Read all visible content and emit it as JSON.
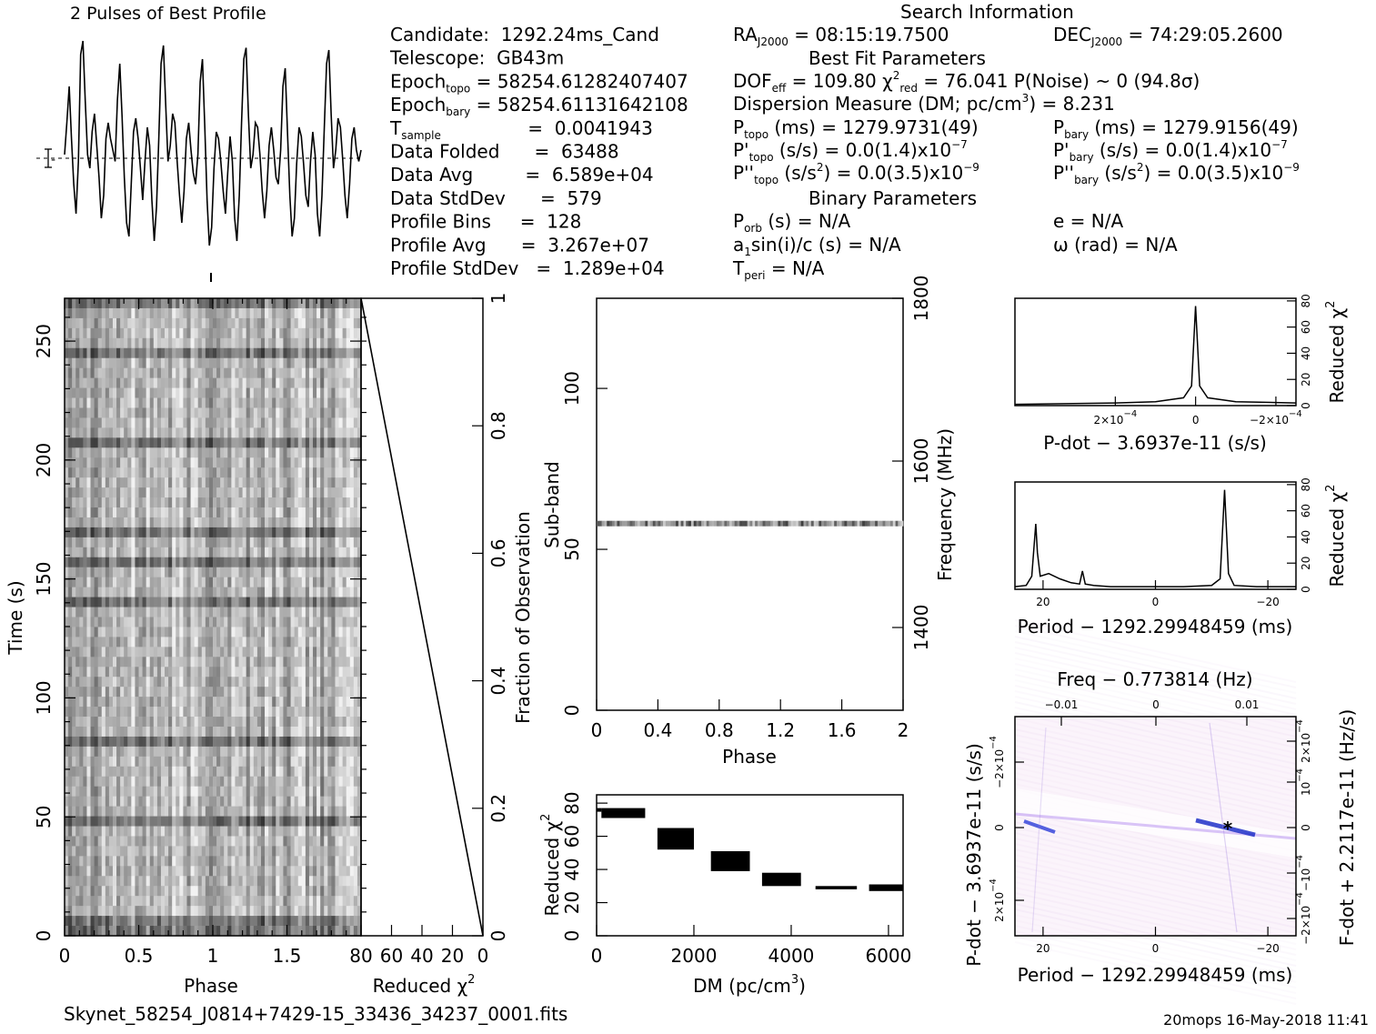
{
  "profile": {
    "title": "2 Pulses of Best Profile",
    "errbar_label": "-",
    "waveform_values": [
      0.48,
      0.62,
      0.78,
      0.55,
      0.35,
      0.22,
      0.45,
      0.92,
      0.98,
      0.72,
      0.48,
      0.42,
      0.58,
      0.66,
      0.52,
      0.38,
      0.2,
      0.3,
      0.55,
      0.62,
      0.55,
      0.5,
      0.45,
      0.72,
      0.88,
      0.65,
      0.38,
      0.18,
      0.12,
      0.35,
      0.58,
      0.64,
      0.55,
      0.42,
      0.28,
      0.45,
      0.6,
      0.52,
      0.28,
      0.1,
      0.25,
      0.55,
      0.88,
      0.96,
      0.7,
      0.45,
      0.52,
      0.66,
      0.62,
      0.45,
      0.3,
      0.18,
      0.32,
      0.55,
      0.62,
      0.5,
      0.4,
      0.35,
      0.48,
      0.8,
      0.9,
      0.6,
      0.28,
      0.08,
      0.16,
      0.42,
      0.58,
      0.55,
      0.45,
      0.32,
      0.22,
      0.4,
      0.56,
      0.45,
      0.2,
      0.1,
      0.3,
      0.62,
      0.9,
      0.95,
      0.65,
      0.42,
      0.48,
      0.62,
      0.6,
      0.48,
      0.32,
      0.2,
      0.32,
      0.52,
      0.6,
      0.5,
      0.38,
      0.35,
      0.5,
      0.78,
      0.86,
      0.58,
      0.3,
      0.12,
      0.2,
      0.44,
      0.6,
      0.56,
      0.44,
      0.3,
      0.25,
      0.45,
      0.58,
      0.48,
      0.22,
      0.12,
      0.3,
      0.6,
      0.88,
      0.94,
      0.66,
      0.42,
      0.5,
      0.64,
      0.6,
      0.46,
      0.3,
      0.2,
      0.35,
      0.55,
      0.6,
      0.5,
      0.45,
      0.5
    ]
  },
  "info": {
    "col1": [
      {
        "label": "Candidate:  1292.24ms_Cand",
        "sub": "",
        "tail": ""
      },
      {
        "label": "Telescope:  GB43m",
        "sub": "",
        "tail": ""
      },
      {
        "label": "Epoch",
        "sub": "topo",
        "tail": " = 58254.61282407407"
      },
      {
        "label": "Epoch",
        "sub": "bary",
        "tail": " = 58254.61131642108"
      },
      {
        "label": "T",
        "sub": "sample",
        "tail": "               =  0.0041943"
      },
      {
        "label": "Data Folded      =  63488",
        "sub": "",
        "tail": ""
      },
      {
        "label": "Data Avg         =  6.589e+04",
        "sub": "",
        "tail": ""
      },
      {
        "label": "Data StdDev      =  579",
        "sub": "",
        "tail": ""
      },
      {
        "label": "Profile Bins     =  128",
        "sub": "",
        "tail": ""
      },
      {
        "label": "Profile Avg      =  3.267e+07",
        "sub": "",
        "tail": ""
      },
      {
        "label": "Profile StdDev   =  1.289e+04",
        "sub": "",
        "tail": ""
      }
    ],
    "search_title": "Search Information",
    "ra_label": "RA",
    "ra_sub": "J2000",
    "ra_value": " = 08:15:19.7500",
    "dec_label": "DEC",
    "dec_sub": "J2000",
    "dec_value": " = 74:29:05.2600",
    "best_fit_title": "Best Fit Parameters",
    "dof_line": "DOF",
    "dof_sub": "eff",
    "dof_value": " = 109.80  χ",
    "chi_sub": "red",
    "chi_value": " = 76.041  P(Noise) ~ 0    (94.8σ)",
    "dm_line": "Dispersion Measure (DM; pc/cm",
    "dm_tail": ") = 8.231",
    "ptopo_label": "P",
    "ptopo_sub": "topo",
    "ptopo_value": " (ms) =  1279.9731(49)",
    "pbary_label": "P",
    "pbary_sub": "bary",
    "pbary_value": " (ms) =  1279.9156(49)",
    "pdtopo_label": "P'",
    "pdtopo_sub": "topo",
    "pdtopo_value": " (s/s) = 0.0(1.4)x10",
    "pdtopo_exp": "−7",
    "pdbary_label": "P'",
    "pdbary_sub": "bary",
    "pdbary_value": " (s/s) = 0.0(1.4)x10",
    "pdbary_exp": "−7",
    "pddtopo_label": "P''",
    "pddtopo_sub": "topo",
    "pddtopo_value": " (s/s",
    "pddtopo_tail": ") = 0.0(3.5)x10",
    "pddtopo_exp": "−9",
    "pddbary_label": "P''",
    "pddbary_sub": "bary",
    "pddbary_value": " (s/s",
    "pddbary_tail": ") = 0.0(3.5)x10",
    "pddbary_exp": "−9",
    "binary_title": "Binary Parameters",
    "porb": "P",
    "porb_sub": "orb",
    "porb_value": " (s) = N/A",
    "e_line": "e = N/A",
    "a1_line": "a",
    "a1_sub": "1",
    "a1_value": "sin(i)/c (s) = N/A",
    "omega_line": "ω (rad) = N/A",
    "tperi": "T",
    "tperi_sub": "peri",
    "tperi_value": " = N/A"
  },
  "chart_data": [
    {
      "type": "heatmap",
      "name": "time-phase",
      "xlabel": "Phase",
      "ylabel": "Time (s)",
      "xlim": [
        0,
        2
      ],
      "ylim": [
        0,
        268
      ],
      "xticks": [
        "0",
        "0.5",
        "1",
        "1.5"
      ],
      "yticks": [
        "0",
        "50",
        "100",
        "150",
        "200",
        "250"
      ],
      "colormap": "grayscale"
    },
    {
      "type": "line",
      "name": "reduced-chi2-vs-time",
      "xlabel": "Reduced χ",
      "ylabel": "Fraction of Observation",
      "xlim": [
        80,
        0
      ],
      "ylim": [
        0,
        1
      ],
      "xticks": [
        "80",
        "60",
        "40",
        "20",
        "0"
      ],
      "yticks": [
        "0",
        "0.2",
        "0.4",
        "0.6",
        "0.8",
        "1"
      ],
      "x": [
        80,
        0
      ],
      "y": [
        1,
        0
      ]
    },
    {
      "type": "heatmap",
      "name": "subband-phase",
      "xlabel": "Phase",
      "ylabel": "Sub-band",
      "y2label": "Frequency (MHz)",
      "xlim": [
        0,
        2
      ],
      "ylim": [
        0,
        128
      ],
      "xticks": [
        "0",
        "0.4",
        "0.8",
        "1.2",
        "1.6",
        "2"
      ],
      "yticks": [
        "0",
        "50",
        "100"
      ],
      "y2ticks": [
        "1400",
        "1600",
        "1800"
      ],
      "bright_band_subband": 58
    },
    {
      "type": "bar",
      "name": "dm-chi2",
      "xlabel": "DM (pc/cm",
      "ylabel": "Reduced χ",
      "xlim": [
        0,
        6300
      ],
      "ylim": [
        0,
        85
      ],
      "xticks": [
        "0",
        "2000",
        "4000",
        "6000"
      ],
      "yticks": [
        "0",
        "20",
        "40",
        "60",
        "80"
      ],
      "steps": [
        {
          "x0": 100,
          "x1": 1000,
          "y0": 71,
          "y1": 77
        },
        {
          "x0": 1250,
          "x1": 2000,
          "y0": 52,
          "y1": 65
        },
        {
          "x0": 2350,
          "x1": 3150,
          "y0": 39,
          "y1": 51
        },
        {
          "x0": 3400,
          "x1": 4200,
          "y0": 30,
          "y1": 38
        },
        {
          "x0": 4500,
          "x1": 5350,
          "y0": 28,
          "y1": 30
        },
        {
          "x0": 5600,
          "x1": 6300,
          "y0": 27,
          "y1": 31
        }
      ]
    },
    {
      "type": "line",
      "name": "pdot-chi2",
      "xlabel": "P-dot − 3.6937e-11 (s/s)",
      "ylabel": "Reduced χ",
      "xlim": [
        0.00045,
        -0.00025
      ],
      "ylim": [
        0,
        82
      ],
      "xticks": [
        "2×10",
        "0",
        "−2×10"
      ],
      "xtick_exp": "−4",
      "yticks": [
        "0",
        "20",
        "40",
        "60",
        "80"
      ],
      "x": [
        0.00045,
        0.0002,
        0.0001,
        3e-05,
        1e-05,
        0,
        -1e-05,
        -3e-05,
        -0.0001,
        -0.00025
      ],
      "y": [
        1,
        2,
        3,
        6,
        15,
        76,
        15,
        6,
        3,
        2
      ]
    },
    {
      "type": "line",
      "name": "period-chi2",
      "xlabel": "Period − 1292.29948459 (ms)",
      "ylabel": "Reduced χ",
      "xlim": [
        25,
        -25
      ],
      "ylim": [
        0,
        82
      ],
      "xticks": [
        "20",
        "0",
        "−20"
      ],
      "yticks": [
        "0",
        "20",
        "40",
        "60",
        "80"
      ],
      "x": [
        25,
        23,
        22,
        21.3,
        21,
        20.5,
        19,
        17,
        15,
        13.5,
        13,
        12.5,
        11,
        8,
        5,
        0,
        -5,
        -10,
        -11.5,
        -12.3,
        -13,
        -14,
        -18,
        -25
      ],
      "y": [
        2,
        3,
        10,
        50,
        28,
        10,
        12,
        8,
        5,
        4,
        14,
        4,
        3,
        2,
        2,
        2,
        2,
        3,
        8,
        76,
        12,
        3,
        2,
        2
      ]
    },
    {
      "type": "heatmap",
      "name": "period-pdot",
      "xlabel": "Period − 1292.29948459 (ms)",
      "ylabel": "P-dot − 3.6937e-11 (s/s)",
      "x2label": "Freq − 0.773814 (Hz)",
      "y2label": "F-dot + 2.2117e-11 (Hz/s)",
      "xlim": [
        25,
        -25
      ],
      "ylim": [
        -0.0003,
        0.0003
      ],
      "xticks": [
        "20",
        "0",
        "−20"
      ],
      "x2ticks": [
        "−0.01",
        "0",
        "0.01"
      ],
      "yticks_left": [
        "2×10",
        "0",
        "−2×10"
      ],
      "yticks_right": [
        "−2×10",
        "−10",
        "0",
        "10",
        "2×10"
      ],
      "tick_exp": "−4",
      "best_marker": "*"
    }
  ],
  "filename": "Skynet_58254_J0814+7429-15_33436_34237_0001.fits",
  "footer_right": "20mops 16-May-2018 11:41"
}
